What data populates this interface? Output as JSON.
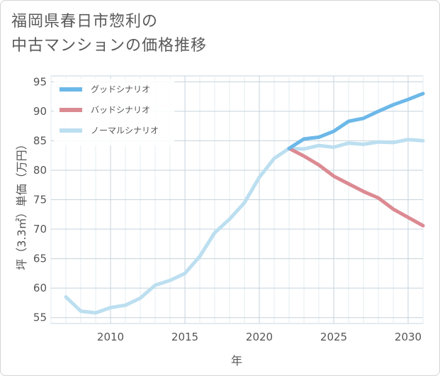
{
  "title_lines": [
    "福岡県春日市惣利の",
    "中古マンションの価格推移"
  ],
  "chart_data": {
    "type": "line",
    "xlabel": "年",
    "ylabel": "坪（3.3㎡）単価（万円）",
    "xlim": [
      2006,
      2031
    ],
    "ylim": [
      54,
      96
    ],
    "xticks": [
      2010,
      2015,
      2020,
      2025,
      2030
    ],
    "yticks": [
      55,
      60,
      65,
      70,
      75,
      80,
      85,
      90,
      95
    ],
    "grid": true,
    "legend_position": "top-left",
    "series": [
      {
        "name": "グッドシナリオ",
        "color": "#6cb8e8",
        "x": [
          2022,
          2023,
          2024,
          2025,
          2026,
          2027,
          2028,
          2029,
          2030,
          2031
        ],
        "y": [
          83.7,
          85.3,
          85.6,
          86.6,
          88.3,
          88.8,
          90.0,
          91.1,
          92.0,
          93.0
        ]
      },
      {
        "name": "バッドシナリオ",
        "color": "#dc8a92",
        "x": [
          2022,
          2023,
          2024,
          2025,
          2026,
          2027,
          2028,
          2029,
          2030,
          2031
        ],
        "y": [
          83.7,
          82.4,
          80.9,
          79.0,
          77.7,
          76.4,
          75.3,
          73.4,
          72.0,
          70.6
        ]
      },
      {
        "name": "ノーマルシナリオ",
        "color": "#bcdff0",
        "x": [
          2007,
          2008,
          2009,
          2010,
          2011,
          2012,
          2013,
          2014,
          2015,
          2016,
          2017,
          2018,
          2019,
          2020,
          2021,
          2022,
          2023,
          2024,
          2025,
          2026,
          2027,
          2028,
          2029,
          2030,
          2031
        ],
        "y": [
          58.5,
          56.1,
          55.8,
          56.7,
          57.1,
          58.3,
          60.5,
          61.3,
          62.5,
          65.4,
          69.4,
          71.7,
          74.5,
          78.8,
          82.0,
          83.7,
          83.6,
          84.2,
          83.9,
          84.6,
          84.4,
          84.8,
          84.7,
          85.2,
          85.0
        ]
      }
    ]
  }
}
